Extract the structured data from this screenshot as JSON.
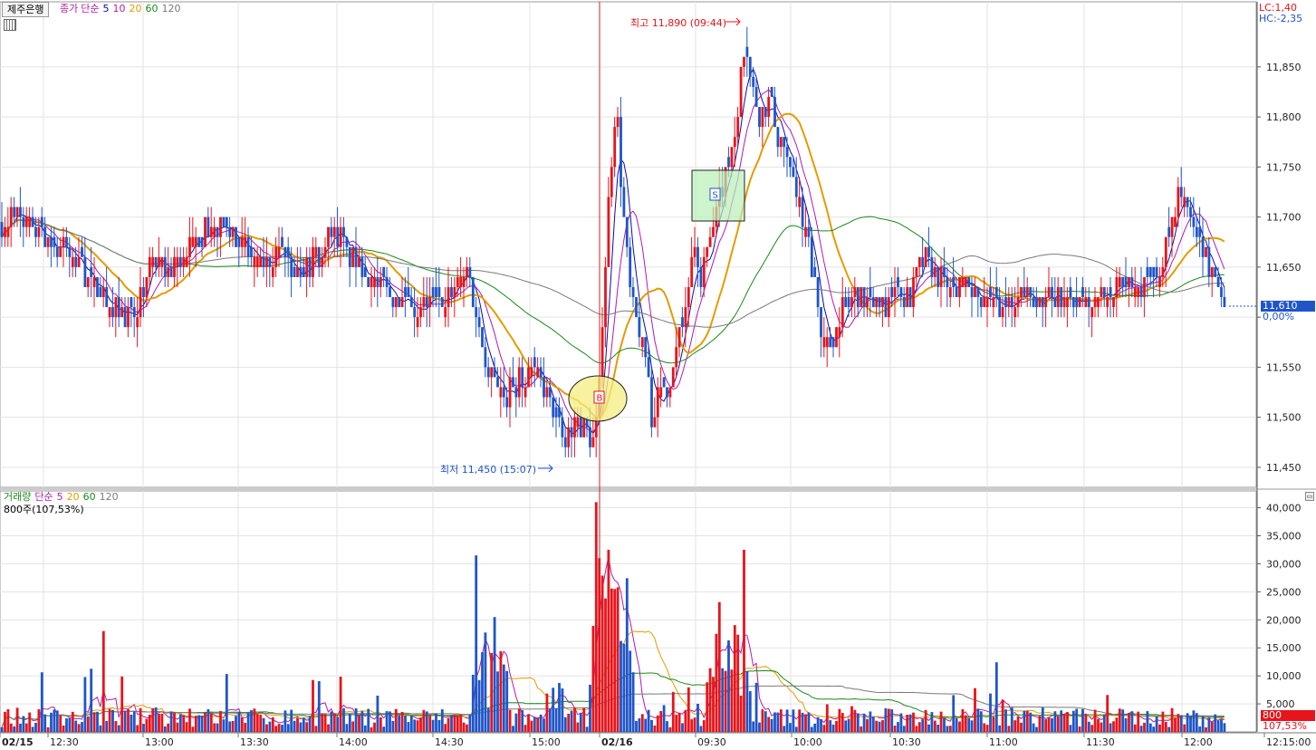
{
  "stock_tag": "제주은행",
  "price_legend": {
    "base": "종가",
    "ma_type": "단순",
    "periods": [
      "5",
      "10",
      "20",
      "60",
      "120"
    ]
  },
  "volume_legend": {
    "base": "거래량",
    "ma_type": "단순",
    "periods": [
      "5",
      "20",
      "60",
      "120"
    ]
  },
  "volume_sub": "800주(107,53%)",
  "lc": "LC:1,40",
  "hc": "HC:-2,35",
  "current_price_tag": "11,610",
  "current_pct_tag": "0,00%",
  "current_volume_tag": "800",
  "current_volume_pct_tag": "107,53%",
  "annotations": {
    "high": "최고 11,890 (09:44)",
    "low": "최저 11,450 (15:07)",
    "buy_marker": "B",
    "sell_marker": "S"
  },
  "colors": {
    "up": "#e8141b",
    "down": "#1f55c8",
    "ma5": "#0a0ab4",
    "ma10": "#b01cb0",
    "ma20": "#e39c00",
    "ma60": "#1a8a1a",
    "ma120": "#7a7a7a"
  },
  "chart_data": {
    "type": "candlestick",
    "x_tick_labels": [
      "02/15",
      "12:30",
      "13:00",
      "13:30",
      "14:00",
      "14:30",
      "15:00",
      "02/16",
      "09:30",
      "10:00",
      "10:30",
      "11:00",
      "11:30",
      "12:00",
      "12:15:00"
    ],
    "price_axis": {
      "ticks": [
        "11,850",
        "11,800",
        "11,750",
        "11,700",
        "11,650",
        "11,600",
        "11,550",
        "11,500",
        "11,450"
      ],
      "range": [
        11430,
        11915
      ]
    },
    "volume_axis": {
      "ticks": [
        "40,000",
        "35,000",
        "30,000",
        "25,000",
        "20,000",
        "15,000",
        "10,000",
        "5,000"
      ],
      "range": [
        0,
        43000
      ]
    },
    "close_path": [
      [
        0,
        11695
      ],
      [
        20,
        11705
      ],
      [
        40,
        11680
      ],
      [
        60,
        11668
      ],
      [
        80,
        11662
      ],
      [
        95,
        11640
      ],
      [
        110,
        11628
      ],
      [
        125,
        11612
      ],
      [
        140,
        11598
      ],
      [
        155,
        11622
      ],
      [
        170,
        11658
      ],
      [
        185,
        11642
      ],
      [
        200,
        11662
      ],
      [
        215,
        11675
      ],
      [
        230,
        11690
      ],
      [
        245,
        11688
      ],
      [
        260,
        11675
      ],
      [
        275,
        11662
      ],
      [
        290,
        11650
      ],
      [
        305,
        11665
      ],
      [
        320,
        11655
      ],
      [
        335,
        11645
      ],
      [
        350,
        11660
      ],
      [
        365,
        11690
      ],
      [
        375,
        11680
      ],
      [
        385,
        11655
      ],
      [
        400,
        11650
      ],
      [
        415,
        11630
      ],
      [
        430,
        11625
      ],
      [
        445,
        11615
      ],
      [
        460,
        11605
      ],
      [
        475,
        11612
      ],
      [
        490,
        11618
      ],
      [
        505,
        11640
      ],
      [
        515,
        11648
      ],
      [
        525,
        11610
      ],
      [
        535,
        11560
      ],
      [
        545,
        11545
      ],
      [
        555,
        11520
      ],
      [
        565,
        11530
      ],
      [
        580,
        11540
      ],
      [
        595,
        11545
      ],
      [
        610,
        11505
      ],
      [
        625,
        11480
      ],
      [
        640,
        11490
      ],
      [
        650,
        11482
      ],
      [
        655,
        11478
      ],
      [
        660,
        11500
      ],
      [
        665,
        11600
      ],
      [
        672,
        11720
      ],
      [
        680,
        11820
      ],
      [
        688,
        11700
      ],
      [
        696,
        11620
      ],
      [
        705,
        11590
      ],
      [
        712,
        11560
      ],
      [
        720,
        11500
      ],
      [
        728,
        11520
      ],
      [
        735,
        11530
      ],
      [
        745,
        11555
      ],
      [
        755,
        11600
      ],
      [
        765,
        11660
      ],
      [
        775,
        11640
      ],
      [
        785,
        11680
      ],
      [
        795,
        11720
      ],
      [
        805,
        11760
      ],
      [
        812,
        11790
      ],
      [
        820,
        11870
      ],
      [
        828,
        11840
      ],
      [
        838,
        11800
      ],
      [
        848,
        11820
      ],
      [
        858,
        11780
      ],
      [
        868,
        11760
      ],
      [
        878,
        11730
      ],
      [
        888,
        11690
      ],
      [
        898,
        11650
      ],
      [
        905,
        11600
      ],
      [
        912,
        11570
      ],
      [
        920,
        11580
      ],
      [
        930,
        11610
      ],
      [
        945,
        11620
      ],
      [
        960,
        11615
      ],
      [
        975,
        11608
      ],
      [
        990,
        11615
      ],
      [
        1005,
        11620
      ],
      [
        1020,
        11660
      ],
      [
        1035,
        11640
      ],
      [
        1050,
        11628
      ],
      [
        1065,
        11635
      ],
      [
        1080,
        11622
      ],
      [
        1095,
        11625
      ],
      [
        1110,
        11610
      ],
      [
        1125,
        11618
      ],
      [
        1140,
        11620
      ],
      [
        1155,
        11612
      ],
      [
        1170,
        11620
      ],
      [
        1185,
        11610
      ],
      [
        1200,
        11615
      ],
      [
        1215,
        11620
      ],
      [
        1230,
        11625
      ],
      [
        1245,
        11630
      ],
      [
        1260,
        11625
      ],
      [
        1275,
        11640
      ],
      [
        1285,
        11660
      ],
      [
        1295,
        11700
      ],
      [
        1302,
        11740
      ],
      [
        1310,
        11700
      ],
      [
        1320,
        11690
      ],
      [
        1330,
        11660
      ],
      [
        1340,
        11640
      ],
      [
        1350,
        11620
      ],
      [
        1355,
        11610
      ]
    ]
  }
}
